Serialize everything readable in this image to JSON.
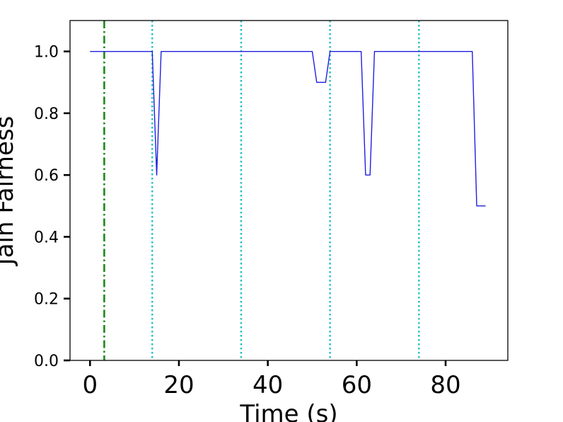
{
  "chart_data": {
    "type": "line",
    "xlabel": "Time (s)",
    "ylabel": "Jain Fairness",
    "xlim": [
      -4.5,
      94
    ],
    "ylim": [
      0,
      1.1
    ],
    "xticks": [
      0,
      20,
      40,
      60,
      80
    ],
    "yticks": [
      0.0,
      0.2,
      0.4,
      0.6,
      0.8,
      1.0
    ],
    "xtick_labels": [
      "0",
      "20",
      "40",
      "60",
      "80"
    ],
    "ytick_labels": [
      "0.0",
      "0.2",
      "0.4",
      "0.6",
      "0.8",
      "1.0"
    ],
    "grid": false,
    "legend": "none",
    "series": [
      {
        "color": "#2020e0",
        "x": [
          0,
          14,
          15,
          16,
          50,
          51,
          53,
          54,
          61,
          62,
          63,
          64,
          86,
          87,
          89
        ],
        "y": [
          1.0,
          1.0,
          0.6,
          1.0,
          1.0,
          0.9,
          0.9,
          1.0,
          1.0,
          0.6,
          0.6,
          1.0,
          1.0,
          0.5,
          0.5
        ]
      }
    ],
    "vlines": [
      {
        "x": 3.2,
        "color": "#1a8a1a",
        "style": "dashdot"
      },
      {
        "x": 14,
        "color": "#20c0c0",
        "style": "dotted"
      },
      {
        "x": 34,
        "color": "#20c0c0",
        "style": "dotted"
      },
      {
        "x": 54,
        "color": "#20c0c0",
        "style": "dotted"
      },
      {
        "x": 74,
        "color": "#20c0c0",
        "style": "dotted"
      }
    ]
  }
}
